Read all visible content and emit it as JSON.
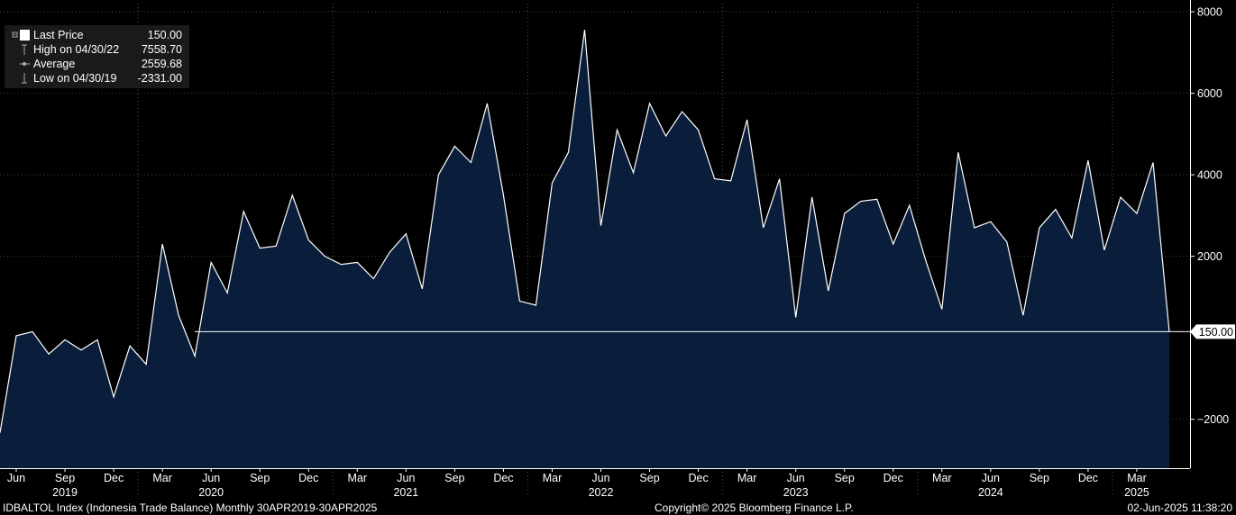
{
  "legend": {
    "last_price_label": "Last Price",
    "last_price_value": "150.00",
    "high_label": "High on 04/30/22",
    "high_value": "7558.70",
    "average_label": "Average",
    "average_value": "2559.68",
    "low_label": "Low on 04/30/19",
    "low_value": "-2331.00"
  },
  "footer": {
    "left": "IDBALTOL Index (Indonesia Trade Balance)  Monthly 30APR2019-30APR2025",
    "center": "Copyright© 2025 Bloomberg Finance L.P.",
    "right": "02-Jun-2025 11:38:20"
  },
  "colors": {
    "background": "#000000",
    "area_fill": "#0a1e3c",
    "line": "#ffffff",
    "grid": "#444444"
  },
  "chart_data": {
    "type": "area",
    "title": "",
    "xlabel": "",
    "ylabel": "",
    "ylim": [
      -3200,
      8200
    ],
    "y_ticks": [
      -2000,
      2000,
      4000,
      6000,
      8000
    ],
    "grid": "horizontal dotted",
    "legend_position": "top-left",
    "last_value_label": "150.00",
    "x_month_ticks": [
      {
        "label": "Jun",
        "index": 1
      },
      {
        "label": "Sep",
        "index": 4
      },
      {
        "label": "Dec",
        "index": 7
      },
      {
        "label": "Mar",
        "index": 10
      },
      {
        "label": "Jun",
        "index": 13
      },
      {
        "label": "Sep",
        "index": 16
      },
      {
        "label": "Dec",
        "index": 19
      },
      {
        "label": "Mar",
        "index": 22
      },
      {
        "label": "Jun",
        "index": 25
      },
      {
        "label": "Sep",
        "index": 28
      },
      {
        "label": "Dec",
        "index": 31
      },
      {
        "label": "Mar",
        "index": 34
      },
      {
        "label": "Jun",
        "index": 37
      },
      {
        "label": "Sep",
        "index": 40
      },
      {
        "label": "Dec",
        "index": 43
      },
      {
        "label": "Mar",
        "index": 46
      },
      {
        "label": "Jun",
        "index": 49
      },
      {
        "label": "Sep",
        "index": 52
      },
      {
        "label": "Dec",
        "index": 55
      },
      {
        "label": "Mar",
        "index": 58
      },
      {
        "label": "Jun",
        "index": 61
      },
      {
        "label": "Sep",
        "index": 64
      },
      {
        "label": "Dec",
        "index": 67
      },
      {
        "label": "Mar",
        "index": 70
      }
    ],
    "x_year_ticks": [
      {
        "label": "2019",
        "index": 4
      },
      {
        "label": "2020",
        "index": 13
      },
      {
        "label": "2021",
        "index": 25
      },
      {
        "label": "2022",
        "index": 37
      },
      {
        "label": "2023",
        "index": 49
      },
      {
        "label": "2024",
        "index": 61
      },
      {
        "label": "2025",
        "index": 70
      }
    ],
    "x_year_separators": [
      8.5,
      20.5,
      32.5,
      44.5,
      56.5,
      68.5
    ],
    "series": [
      {
        "x": [
          "2019-04",
          "2019-05",
          "2019-06",
          "2019-07",
          "2019-08",
          "2019-09",
          "2019-10",
          "2019-11",
          "2019-12",
          "2020-01",
          "2020-02",
          "2020-03",
          "2020-04",
          "2020-05",
          "2020-06",
          "2020-07",
          "2020-08",
          "2020-09",
          "2020-10",
          "2020-11",
          "2020-12",
          "2021-01",
          "2021-02",
          "2021-03",
          "2021-04",
          "2021-05",
          "2021-06",
          "2021-07",
          "2021-08",
          "2021-09",
          "2021-10",
          "2021-11",
          "2021-12",
          "2022-01",
          "2022-02",
          "2022-03",
          "2022-04",
          "2022-05",
          "2022-06",
          "2022-07",
          "2022-08",
          "2022-09",
          "2022-10",
          "2022-11",
          "2022-12",
          "2023-01",
          "2023-02",
          "2023-03",
          "2023-04",
          "2023-05",
          "2023-06",
          "2023-07",
          "2023-08",
          "2023-09",
          "2023-10",
          "2023-11",
          "2023-12",
          "2024-01",
          "2024-02",
          "2024-03",
          "2024-04",
          "2024-05",
          "2024-06",
          "2024-07",
          "2024-08",
          "2024-09",
          "2024-10",
          "2024-11",
          "2024-12",
          "2025-01",
          "2025-02",
          "2025-03",
          "2025-04"
        ],
        "values": [
          -2331,
          50,
          150,
          -400,
          -50,
          -300,
          -50,
          -1450,
          -200,
          -650,
          2300,
          550,
          -450,
          1850,
          1100,
          3100,
          2200,
          2250,
          3500,
          2400,
          2000,
          1800,
          1850,
          1450,
          2100,
          2550,
          1200,
          4000,
          4700,
          4300,
          5750,
          3500,
          900,
          800,
          3800,
          4550,
          7558.7,
          2750,
          5100,
          4050,
          5750,
          4950,
          5550,
          5100,
          3900,
          3850,
          5350,
          2700,
          3900,
          500,
          3450,
          1150,
          3050,
          3350,
          3400,
          2300,
          3250,
          1900,
          700,
          4550,
          2700,
          2850,
          2350,
          550,
          2700,
          3150,
          2450,
          4350,
          2150,
          3450,
          3050,
          4300,
          150
        ]
      }
    ]
  }
}
